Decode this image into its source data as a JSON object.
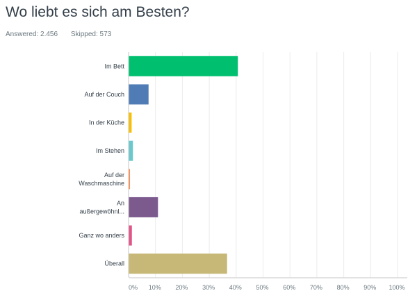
{
  "question": {
    "title": "Wo liebt es sich am Besten?",
    "answered": "Answered: 2.456",
    "skipped": "Skipped: 573"
  },
  "chart_data": {
    "type": "bar",
    "orientation": "horizontal",
    "categories": [
      [
        "Im Bett"
      ],
      [
        "Auf der Couch"
      ],
      [
        "In der Küche"
      ],
      [
        "Im Stehen"
      ],
      [
        "Auf der",
        "Waschmaschine"
      ],
      [
        "An",
        "außergewöhnl..."
      ],
      [
        "Ganz wo anders"
      ],
      [
        "Überall"
      ]
    ],
    "values": [
      40.5,
      7.3,
      1.0,
      1.5,
      0.4,
      10.8,
      1.1,
      36.5
    ],
    "colors": [
      "#00bf6f",
      "#507cb6",
      "#f9be00",
      "#6bc8cd",
      "#ff8b4f",
      "#7d5a8e",
      "#e05488",
      "#c8b878"
    ],
    "xlim": [
      0,
      100
    ],
    "xticks": [
      "0%",
      "10%",
      "20%",
      "30%",
      "40%",
      "50%",
      "60%",
      "70%",
      "80%",
      "90%",
      "100%"
    ],
    "grid": true
  }
}
